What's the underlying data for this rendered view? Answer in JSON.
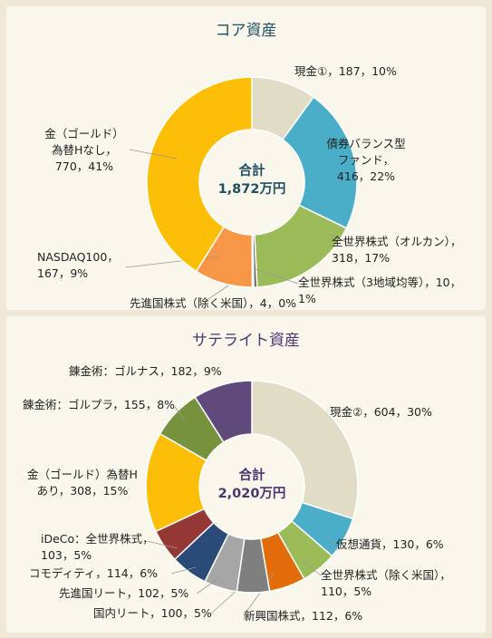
{
  "chart_data": [
    {
      "type": "pie",
      "title": "コア資産",
      "center_label": "合計",
      "center_value": "1,872万円",
      "colors": {
        "title": "#1f5061",
        "center": "#1f5061"
      },
      "slices": [
        {
          "name": "現金①",
          "value": 187,
          "percent": 10,
          "label": [
            "現金①，187，10%"
          ],
          "color": "#e1dcc6"
        },
        {
          "name": "債券バランス型ファンド",
          "value": 416,
          "percent": 22,
          "label": [
            "債券バランス型",
            "ファンド，",
            "416，22%"
          ],
          "color": "#4aaec9"
        },
        {
          "name": "全世界株式（オルカン）",
          "value": 318,
          "percent": 17,
          "label": [
            "全世界株式（オルカン），",
            "318，17%"
          ],
          "color": "#9bbb59"
        },
        {
          "name": "全世界株式（3地域均等）",
          "value": 10,
          "percent": 1,
          "label": [
            "全世界株式（3地域均等），10，",
            "1%"
          ],
          "color": "#6e6e6e"
        },
        {
          "name": "先進国株式（除く米国）",
          "value": 4,
          "percent": 0,
          "label": [
            "先進国株式（除く米国），4，0%"
          ],
          "color": "#c0504d"
        },
        {
          "name": "NASDAQ100",
          "value": 167,
          "percent": 9,
          "label": [
            "NASDAQ100，",
            "167，9%"
          ],
          "color": "#f79646"
        },
        {
          "name": "金（ゴールド）為替Hなし",
          "value": 770,
          "percent": 41,
          "label": [
            "金（ゴールド）",
            "為替Hなし，",
            "770，41%"
          ],
          "color": "#fcbe06"
        }
      ]
    },
    {
      "type": "pie",
      "title": "サテライト資産",
      "center_label": "合計",
      "center_value": "2,020万円",
      "colors": {
        "title": "#4a3571",
        "center": "#4a3571"
      },
      "slices": [
        {
          "name": "現金②",
          "value": 604,
          "percent": 30,
          "label": [
            "現金②，604，30%"
          ],
          "color": "#e1dcc6"
        },
        {
          "name": "仮想通貨",
          "value": 130,
          "percent": 6,
          "label": [
            "仮想通貨，130，6%"
          ],
          "color": "#4aaec9"
        },
        {
          "name": "全世界株式（除く米国）",
          "value": 110,
          "percent": 5,
          "label": [
            "全世界株式（除く米国），",
            "110，5%"
          ],
          "color": "#9bbb59"
        },
        {
          "name": "新興国株式",
          "value": 112,
          "percent": 6,
          "label": [
            "新興国株式，112，6%"
          ],
          "color": "#e36c0a"
        },
        {
          "name": "国内リート",
          "value": 100,
          "percent": 5,
          "label": [
            "国内リート，100，5%"
          ],
          "color": "#7f7f7f"
        },
        {
          "name": "先進国リート",
          "value": 102,
          "percent": 5,
          "label": [
            "先進国リート，102，5%"
          ],
          "color": "#a6a6a6"
        },
        {
          "name": "コモディティ",
          "value": 114,
          "percent": 6,
          "label": [
            "コモディティ，114，6%"
          ],
          "color": "#2a4a78"
        },
        {
          "name": "iDeCo：全世界株式",
          "value": 103,
          "percent": 5,
          "label": [
            "iDeCo：全世界株式，",
            "103，5%"
          ],
          "color": "#953735"
        },
        {
          "name": "金（ゴールド）為替Hあり",
          "value": 308,
          "percent": 15,
          "label": [
            "金（ゴールド）為替H",
            "あり，308，15%"
          ],
          "color": "#fcbe06"
        },
        {
          "name": "錬金術：ゴルプラ",
          "value": 155,
          "percent": 8,
          "label": [
            "錬金術：ゴルプラ，155，8%"
          ],
          "color": "#76923c"
        },
        {
          "name": "錬金術：ゴルナス",
          "value": 182,
          "percent": 9,
          "label": [
            "錬金術：ゴルナス，182，9%"
          ],
          "color": "#604a7b"
        }
      ]
    }
  ]
}
